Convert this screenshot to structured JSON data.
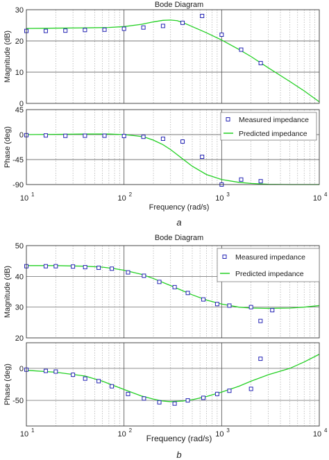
{
  "colors": {
    "measured": "#2323b4",
    "predicted": "#22d022",
    "axis": "#333333",
    "minor_grid": "#9a9a9a",
    "major_grid": "#4a4a4a"
  },
  "figures": [
    {
      "label": "a",
      "title": "Bode Diagram",
      "xlabel": "Frequency  (rad/s)",
      "legend_position": "inside-phase-top-right",
      "xtick_labels": [
        "10",
        "10",
        "10",
        "10"
      ],
      "xtick_exponents": [
        "1",
        "2",
        "3",
        "4"
      ]
    },
    {
      "label": "b",
      "title": "Bode Diagram",
      "xlabel": "Frequency  (rad/s)",
      "legend_position": "inside-magnitude-top-right",
      "xtick_labels": [
        "10",
        "10",
        "10",
        "10"
      ],
      "xtick_exponents": [
        "1",
        "2",
        "3",
        "4"
      ]
    }
  ],
  "chart_data": [
    {
      "figure": "a",
      "panel": "magnitude",
      "type": "scatter",
      "title": "Bode Diagram",
      "xlabel": "",
      "ylabel": "Magnitude (dB)",
      "x_scale": "log",
      "xlim": [
        10,
        10000
      ],
      "ylim": [
        0,
        30
      ],
      "yticks": [
        0,
        10,
        20,
        30
      ],
      "ytick_labels": [
        "0",
        "10",
        "20",
        "30"
      ],
      "grid": true,
      "series": [
        {
          "name": "Measured impedance",
          "kind": "markers",
          "x": [
            10,
            15.8,
            25.1,
            39.8,
            63.1,
            100,
            158,
            251,
            398,
            631,
            1000,
            1585,
            2512
          ],
          "y": [
            23.2,
            23.2,
            23.3,
            23.5,
            23.6,
            23.9,
            24.3,
            24.8,
            25.8,
            28,
            22,
            17.2,
            12.9
          ]
        },
        {
          "name": "Predicted impedance",
          "kind": "line",
          "x": [
            10,
            20,
            40,
            70,
            100,
            150,
            200,
            250,
            300,
            350,
            400,
            500,
            700,
            1000,
            1500,
            2000,
            3000,
            5000,
            7000,
            10000
          ],
          "y": [
            24,
            24.1,
            24.2,
            24.3,
            24.6,
            25.3,
            26.1,
            26.6,
            26.7,
            26.5,
            25.9,
            24.6,
            22.6,
            20.3,
            17.3,
            15,
            11.4,
            7,
            4,
            0.5
          ]
        }
      ]
    },
    {
      "figure": "a",
      "panel": "phase",
      "type": "scatter",
      "xlabel": "Frequency  (rad/s)",
      "ylabel": "Phase (deg)",
      "x_scale": "log",
      "xlim": [
        10,
        10000
      ],
      "ylim": [
        -90,
        45
      ],
      "yticks": [
        45,
        0,
        -45,
        -90
      ],
      "ytick_labels": [
        "45",
        "0",
        "-45",
        "-90"
      ],
      "grid": true,
      "legend": [
        "Measured impedance",
        "Predicted impedance"
      ],
      "series": [
        {
          "name": "Measured impedance",
          "kind": "markers",
          "x": [
            10,
            15.8,
            25.1,
            39.8,
            63.1,
            100,
            158,
            251,
            398,
            631,
            1000,
            1585,
            2512
          ],
          "y": [
            -1,
            -1.5,
            -2.2,
            -2,
            -2,
            -2.5,
            -4,
            -7.5,
            -12.5,
            -40,
            -90,
            -81,
            -84
          ]
        },
        {
          "name": "Predicted impedance",
          "kind": "line",
          "x": [
            10,
            20,
            40,
            70,
            100,
            130,
            160,
            200,
            250,
            300,
            400,
            500,
            700,
            1000,
            1500,
            2000,
            3000,
            5000,
            10000
          ],
          "y": [
            0,
            0.5,
            1,
            1,
            0,
            -2,
            -4,
            -10,
            -18,
            -27,
            -44,
            -57,
            -72,
            -81,
            -86,
            -88,
            -89.5,
            -90,
            -90
          ]
        }
      ]
    },
    {
      "figure": "b",
      "panel": "magnitude",
      "type": "scatter",
      "title": "Bode Diagram",
      "xlabel": "",
      "ylabel": "Magnitude (dB)",
      "x_scale": "log",
      "xlim": [
        10,
        10000
      ],
      "ylim": [
        20,
        50
      ],
      "yticks": [
        20,
        30,
        40,
        50
      ],
      "ytick_labels": [
        "20",
        "30",
        "40",
        "50"
      ],
      "grid": true,
      "legend": [
        "Measured impedance",
        "Predicted impedance"
      ],
      "series": [
        {
          "name": "Measured impedance",
          "kind": "markers",
          "x": [
            10,
            15.8,
            20,
            30,
            40,
            55,
            75,
            110,
            160,
            230,
            330,
            450,
            650,
            900,
            1200,
            2000,
            2500,
            3300
          ],
          "y": [
            43.3,
            43.3,
            43.3,
            43.2,
            43,
            42.8,
            42.5,
            41.3,
            40.2,
            38.2,
            36.5,
            34.6,
            32.5,
            31,
            30.5,
            30,
            25.5,
            29
          ]
        },
        {
          "name": "Predicted impedance",
          "kind": "line",
          "x": [
            10,
            20,
            40,
            60,
            80,
            100,
            150,
            200,
            300,
            500,
            700,
            1000,
            1500,
            2000,
            3000,
            5000,
            7000,
            10000
          ],
          "y": [
            43.5,
            43.5,
            43.3,
            43,
            42.5,
            42,
            40.7,
            39.3,
            37,
            34,
            32.3,
            31,
            30,
            29.7,
            29.6,
            29.7,
            30,
            30.5
          ]
        }
      ]
    },
    {
      "figure": "b",
      "panel": "phase",
      "type": "scatter",
      "xlabel": "Frequency  (rad/s)",
      "ylabel": "Phase (deg)",
      "x_scale": "log",
      "xlim": [
        10,
        10000
      ],
      "ylim": [
        -90,
        40
      ],
      "yticks": [
        0,
        -50
      ],
      "ytick_labels": [
        "0",
        "-50"
      ],
      "grid": true,
      "series": [
        {
          "name": "Measured impedance",
          "kind": "markers",
          "x": [
            10,
            15.8,
            20,
            30,
            40,
            55,
            75,
            110,
            160,
            230,
            330,
            450,
            650,
            900,
            1200,
            2000,
            2500
          ],
          "y": [
            -2,
            -4,
            -5,
            -10,
            -16,
            -20,
            -28,
            -40,
            -47,
            -53,
            -55,
            -50,
            -46,
            -40,
            -35,
            -32,
            15
          ]
        },
        {
          "name": "Predicted impedance",
          "kind": "line",
          "x": [
            10,
            20,
            40,
            60,
            100,
            150,
            200,
            250,
            300,
            400,
            500,
            700,
            1000,
            1500,
            2000,
            3000,
            5000,
            7000,
            10000
          ],
          "y": [
            -3,
            -6,
            -12,
            -20,
            -33,
            -43,
            -48,
            -51,
            -52,
            -51,
            -49,
            -44,
            -37,
            -28,
            -20,
            -10,
            0,
            10,
            22
          ]
        }
      ]
    }
  ]
}
